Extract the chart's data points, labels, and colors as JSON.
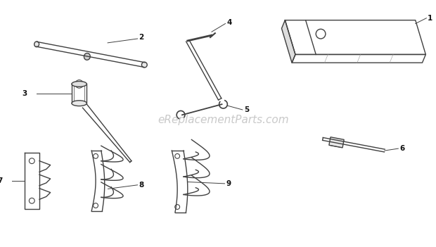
{
  "bg_color": "#ffffff",
  "line_color": "#404040",
  "label_color": "#111111",
  "watermark_text": "eReplacementParts.com",
  "watermark_color": "#c0c0c0",
  "figsize": [
    6.2,
    3.51
  ],
  "dpi": 100,
  "lw": 1.0
}
